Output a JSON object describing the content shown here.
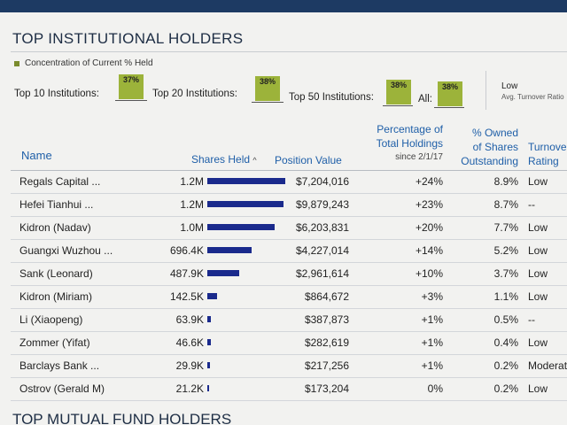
{
  "section_title": "TOP INSTITUTIONAL HOLDERS",
  "concentration_label": "Concentration of Current % Held",
  "summary": [
    {
      "label": "Top 10 Institutions:",
      "value": "37%"
    },
    {
      "label": "Top 20 Institutions:",
      "value": "38%"
    },
    {
      "label": "Top 50 Institutions:",
      "value": "38%"
    },
    {
      "label": "All:",
      "value": "38%"
    }
  ],
  "turnover": {
    "value": "Low",
    "label": "Avg. Turnover Ratio"
  },
  "columns": {
    "name": "Name",
    "shares": "Shares Held",
    "position": "Position Value",
    "pct_holdings_1": "Percentage of",
    "pct_holdings_2": "Total Holdings",
    "pct_holdings_3": "since 2/1/17",
    "owned_1": "% Owned",
    "owned_2": "of Shares",
    "owned_3": "Outstanding",
    "turnover_1": "Turnover",
    "turnover_2": "Rating"
  },
  "sort_indicator": "^",
  "colors": {
    "bar": "#1a2a8c",
    "accent": "#1f5fa8",
    "box": "#9cb33a"
  },
  "rows": [
    {
      "name": "Regals Capital ...",
      "shares": "1.2M",
      "bar": 1.0,
      "position": "$7,204,016",
      "pct": "+24%",
      "owned": "8.9%",
      "turnover": "Low"
    },
    {
      "name": "Hefei Tianhui ...",
      "shares": "1.2M",
      "bar": 0.98,
      "position": "$9,879,243",
      "pct": "+23%",
      "owned": "8.7%",
      "turnover": "--"
    },
    {
      "name": "Kidron (Nadav)",
      "shares": "1.0M",
      "bar": 0.86,
      "position": "$6,203,831",
      "pct": "+20%",
      "owned": "7.7%",
      "turnover": "Low"
    },
    {
      "name": "Guangxi Wuzhou ...",
      "shares": "696.4K",
      "bar": 0.57,
      "position": "$4,227,014",
      "pct": "+14%",
      "owned": "5.2%",
      "turnover": "Low"
    },
    {
      "name": "Sank (Leonard)",
      "shares": "487.9K",
      "bar": 0.41,
      "position": "$2,961,614",
      "pct": "+10%",
      "owned": "3.7%",
      "turnover": "Low"
    },
    {
      "name": "Kidron (Miriam)",
      "shares": "142.5K",
      "bar": 0.12,
      "position": "$864,672",
      "pct": "+3%",
      "owned": "1.1%",
      "turnover": "Low"
    },
    {
      "name": "Li (Xiaopeng)",
      "shares": "63.9K",
      "bar": 0.05,
      "position": "$387,873",
      "pct": "+1%",
      "owned": "0.5%",
      "turnover": "--"
    },
    {
      "name": "Zommer (Yifat)",
      "shares": "46.6K",
      "bar": 0.04,
      "position": "$282,619",
      "pct": "+1%",
      "owned": "0.4%",
      "turnover": "Low"
    },
    {
      "name": "Barclays Bank ...",
      "shares": "29.9K",
      "bar": 0.03,
      "position": "$217,256",
      "pct": "+1%",
      "owned": "0.2%",
      "turnover": "Moderate"
    },
    {
      "name": "Ostrov (Gerald M)",
      "shares": "21.2K",
      "bar": 0.02,
      "position": "$173,204",
      "pct": "0%",
      "owned": "0.2%",
      "turnover": "Low"
    }
  ],
  "next_section_title": "TOP MUTUAL FUND HOLDERS"
}
